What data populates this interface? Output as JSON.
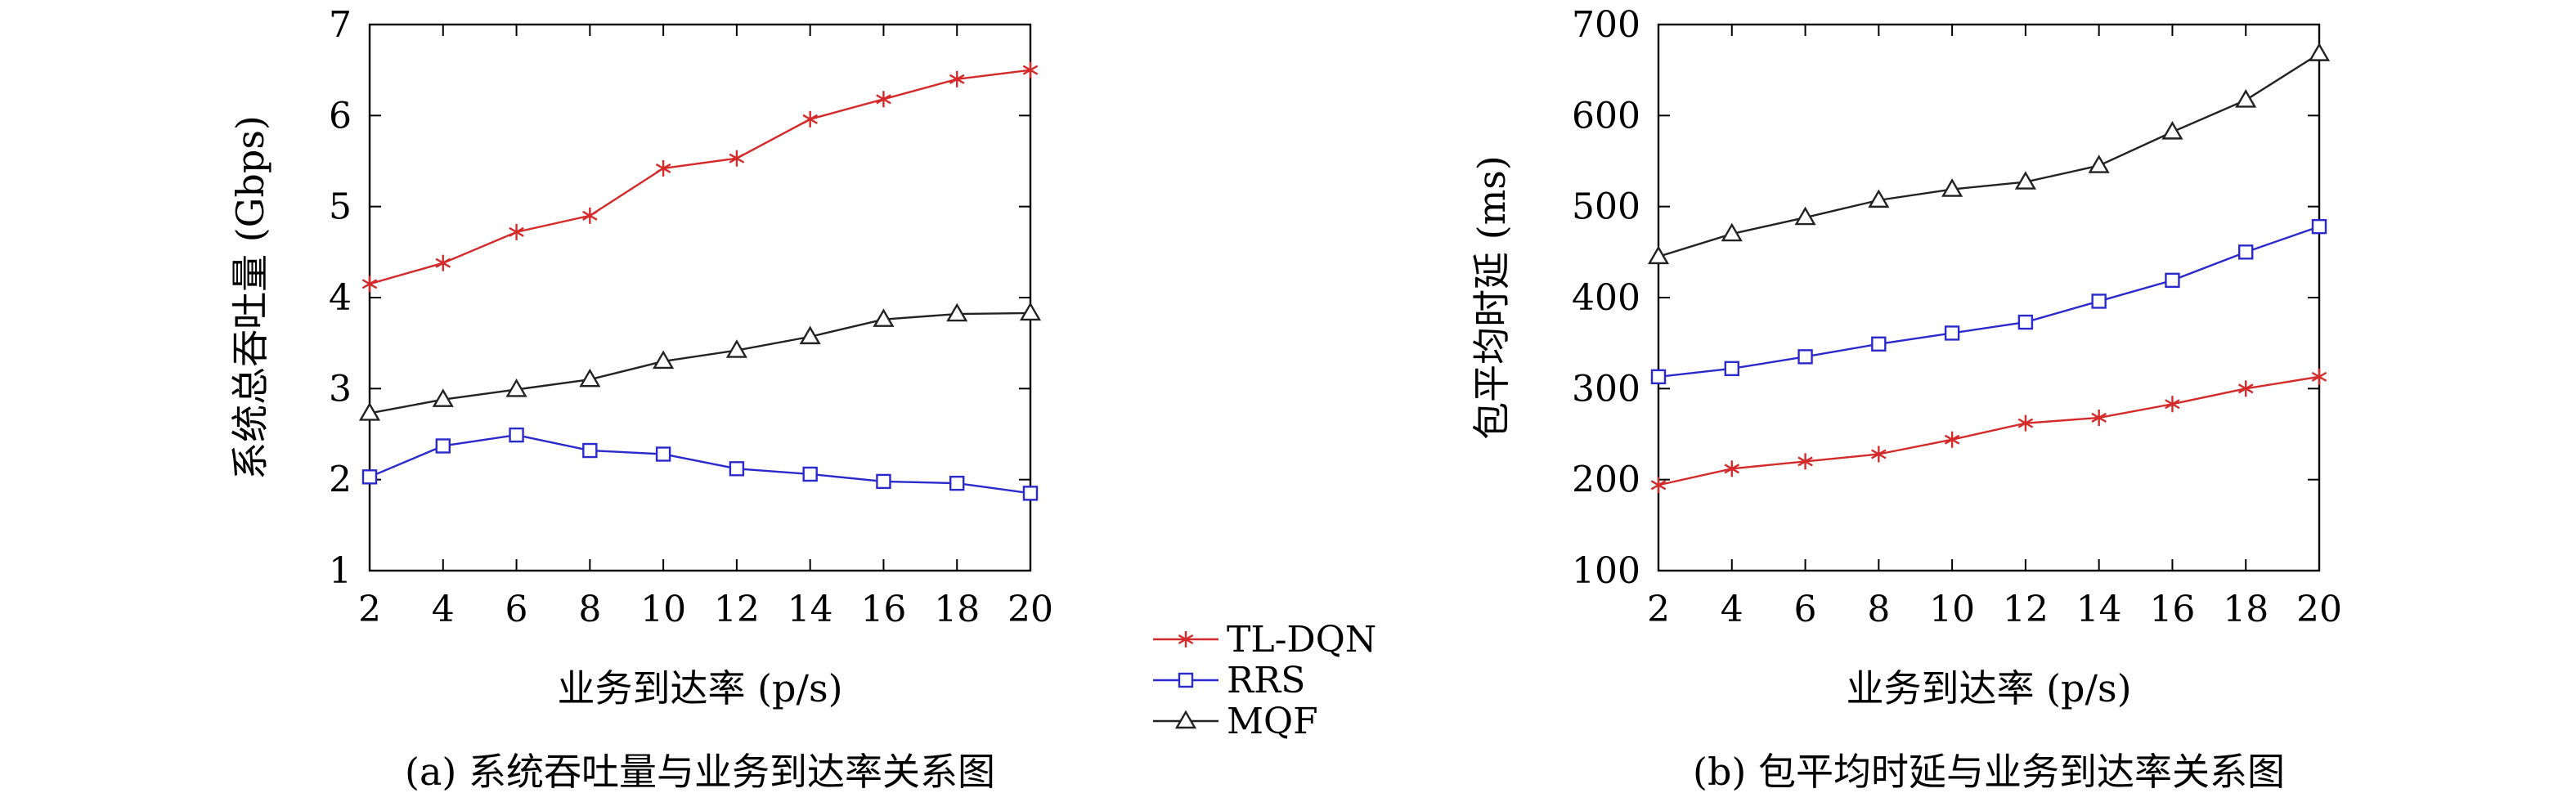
{
  "colors": {
    "TL-DQN": "#d42a2a",
    "RRS": "#2a2acc",
    "MQF": "#222222"
  },
  "legend": [
    {
      "name": "TL-DQN",
      "marker": "asterisk"
    },
    {
      "name": "RRS",
      "marker": "square"
    },
    {
      "name": "MQF",
      "marker": "triangle"
    }
  ],
  "chart_data": [
    {
      "type": "line",
      "caption": "(a) 系统吞吐量与业务到达率关系图",
      "xlabel": "业务到达率 (p/s)",
      "ylabel": "系统总吞吐量 (Gbps)",
      "x": [
        2,
        4,
        6,
        8,
        10,
        12,
        14,
        16,
        18,
        20
      ],
      "xticks": [
        2,
        4,
        6,
        8,
        10,
        12,
        14,
        16,
        18,
        20
      ],
      "xlim": [
        2,
        20
      ],
      "yticks": [
        1,
        2,
        3,
        4,
        5,
        6,
        7
      ],
      "ylim": [
        1,
        7
      ],
      "grid": false,
      "series": [
        {
          "name": "TL-DQN",
          "values": [
            4.15,
            4.38,
            4.72,
            4.9,
            5.42,
            5.53,
            5.96,
            6.18,
            6.4,
            6.5
          ]
        },
        {
          "name": "RRS",
          "values": [
            2.03,
            2.37,
            2.49,
            2.32,
            2.28,
            2.12,
            2.06,
            1.98,
            1.96,
            1.85
          ]
        },
        {
          "name": "MQF",
          "values": [
            2.73,
            2.88,
            2.99,
            3.1,
            3.3,
            3.42,
            3.57,
            3.76,
            3.82,
            3.83
          ]
        }
      ]
    },
    {
      "type": "line",
      "caption": "(b) 包平均时延与业务到达率关系图",
      "xlabel": "业务到达率 (p/s)",
      "ylabel": "包平均时延 (ms)",
      "x": [
        2,
        4,
        6,
        8,
        10,
        12,
        14,
        16,
        18,
        20
      ],
      "xticks": [
        2,
        4,
        6,
        8,
        10,
        12,
        14,
        16,
        18,
        20
      ],
      "xlim": [
        2,
        20
      ],
      "yticks": [
        100,
        200,
        300,
        400,
        500,
        600,
        700
      ],
      "ylim": [
        100,
        700
      ],
      "grid": false,
      "series": [
        {
          "name": "TL-DQN",
          "values": [
            194,
            212,
            220,
            228,
            244,
            262,
            268,
            283,
            300,
            313
          ]
        },
        {
          "name": "RRS",
          "values": [
            313,
            322,
            335,
            349,
            361,
            373,
            396,
            419,
            450,
            478
          ]
        },
        {
          "name": "MQF",
          "values": [
            445,
            470,
            488,
            507,
            519,
            527,
            545,
            582,
            617,
            668
          ]
        }
      ]
    }
  ]
}
